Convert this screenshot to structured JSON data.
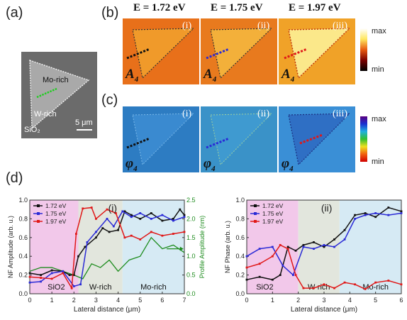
{
  "panels": {
    "a": "(a)",
    "b": "(b)",
    "c": "(c)",
    "d": "(d)"
  },
  "energies": [
    "E = 1.72 eV",
    "E = 1.75 eV",
    "E = 1.97 eV"
  ],
  "romans": [
    "(i)",
    "(ii)",
    "(iii)"
  ],
  "amp_symbol": "A",
  "phase_symbol": "φ",
  "sub": "4",
  "colorbar": {
    "max": "max",
    "min": "min"
  },
  "photo": {
    "mo": "Mo-rich",
    "w": "W-rich",
    "sio2": "SiO₂",
    "scale": "5 μm"
  },
  "colors": {
    "amp_bg": "#e8741a",
    "phase_bg": "#2e7fc4",
    "s172": "#111111",
    "s175": "#2a2ad6",
    "s197": "#e01818",
    "green": "#1e8c1e",
    "sio2_region": "#f2c8ea",
    "w_region": "#e2e6dd",
    "mo_region": "#d6eaf4"
  },
  "chart_data": [
    {
      "type": "line",
      "panel": "(i)",
      "xlabel": "Lateral distance (μm)",
      "ylabel": "NF Amplitude (arb. u.)",
      "y2label": "Profile Amplitude (nm)",
      "xlim": [
        0,
        7
      ],
      "ylim": [
        0,
        1.0
      ],
      "y2lim": [
        0,
        2.5
      ],
      "xticks": [
        0,
        1,
        2,
        3,
        4,
        5,
        6,
        7
      ],
      "yticks": [
        0.0,
        0.2,
        0.4,
        0.6,
        0.8,
        1.0
      ],
      "y2ticks": [
        0.0,
        0.5,
        1.0,
        1.5,
        2.0,
        2.5
      ],
      "regions": [
        "SiO2",
        "W-rich",
        "Mo-rich"
      ],
      "region_bounds": [
        0,
        2.2,
        4.2,
        7
      ],
      "series": [
        {
          "name": "1.72 eV",
          "x": [
            0,
            0.5,
            1,
            1.5,
            1.8,
            2.0,
            2.2,
            2.5,
            3.0,
            3.3,
            3.6,
            4.0,
            4.3,
            4.6,
            5.0,
            5.5,
            6.0,
            6.5,
            6.8,
            7.0
          ],
          "y": [
            0.22,
            0.2,
            0.25,
            0.24,
            0.2,
            0.2,
            0.4,
            0.5,
            0.6,
            0.7,
            0.66,
            0.68,
            0.88,
            0.84,
            0.8,
            0.86,
            0.78,
            0.8,
            0.9,
            0.84
          ]
        },
        {
          "name": "1.75 eV",
          "x": [
            0,
            0.5,
            1,
            1.5,
            2.0,
            2.3,
            2.6,
            3.0,
            3.5,
            3.8,
            4.2,
            4.6,
            5.0,
            5.5,
            6.0,
            6.5,
            7.0
          ],
          "y": [
            0.12,
            0.13,
            0.22,
            0.24,
            0.08,
            0.1,
            0.55,
            0.66,
            0.8,
            0.72,
            0.88,
            0.82,
            0.86,
            0.8,
            0.84,
            0.78,
            0.82
          ]
        },
        {
          "name": "1.97 eV",
          "x": [
            0,
            0.5,
            1,
            1.5,
            1.9,
            2.1,
            2.4,
            2.8,
            3.0,
            3.5,
            3.9,
            4.3,
            4.6,
            5.0,
            5.5,
            6.0,
            6.5,
            7.0
          ],
          "y": [
            0.18,
            0.17,
            0.16,
            0.22,
            0.06,
            0.64,
            0.91,
            0.92,
            0.8,
            0.9,
            0.86,
            0.6,
            0.62,
            0.58,
            0.66,
            0.62,
            0.64,
            0.66
          ]
        }
      ],
      "profile": {
        "x": [
          0,
          0.5,
          1,
          1.5,
          2.0,
          2.4,
          2.8,
          3.2,
          3.6,
          4.0,
          4.5,
          5.0,
          5.5,
          6.0,
          6.5,
          7.0
        ],
        "y": [
          0.6,
          0.7,
          0.7,
          0.6,
          0.5,
          0.4,
          0.8,
          0.7,
          0.9,
          0.6,
          0.9,
          1.0,
          1.5,
          1.2,
          1.3,
          1.1
        ]
      },
      "legend_position": "top-left"
    },
    {
      "type": "line",
      "panel": "(ii)",
      "xlabel": "Lateral distance (μm)",
      "ylabel": "NF Phase (arb. u.)",
      "xlim": [
        0,
        6
      ],
      "ylim": [
        0,
        1.0
      ],
      "xticks": [
        0,
        1,
        2,
        3,
        4,
        5,
        6
      ],
      "regions": [
        "SiO2",
        "W-rich",
        "Mo-rich"
      ],
      "region_bounds": [
        0,
        2.0,
        3.6,
        6
      ],
      "series": [
        {
          "name": "1.72 eV",
          "x": [
            0,
            0.5,
            1.0,
            1.3,
            1.6,
            1.9,
            2.2,
            2.6,
            3.0,
            3.4,
            3.8,
            4.2,
            4.6,
            5.0,
            5.5,
            6.0
          ],
          "y": [
            0.15,
            0.18,
            0.15,
            0.2,
            0.5,
            0.46,
            0.52,
            0.55,
            0.5,
            0.58,
            0.68,
            0.84,
            0.86,
            0.82,
            0.92,
            0.88
          ]
        },
        {
          "name": "1.75 eV",
          "x": [
            0,
            0.5,
            1.0,
            1.4,
            1.8,
            2.2,
            2.6,
            3.0,
            3.4,
            3.8,
            4.2,
            4.6,
            5.0,
            5.5,
            6.0
          ],
          "y": [
            0.4,
            0.48,
            0.5,
            0.3,
            0.2,
            0.5,
            0.48,
            0.52,
            0.5,
            0.58,
            0.8,
            0.84,
            0.86,
            0.84,
            0.86
          ]
        },
        {
          "name": "1.97 eV",
          "x": [
            0,
            0.5,
            1.0,
            1.3,
            1.6,
            1.9,
            2.2,
            2.6,
            3.0,
            3.4,
            3.8,
            4.2,
            4.6,
            5.0,
            5.5,
            6.0
          ],
          "y": [
            0.28,
            0.32,
            0.4,
            0.52,
            0.48,
            0.2,
            0.06,
            0.06,
            0.1,
            0.06,
            0.12,
            0.1,
            0.05,
            0.12,
            0.14,
            0.1
          ]
        }
      ],
      "legend_position": "top-left"
    }
  ]
}
